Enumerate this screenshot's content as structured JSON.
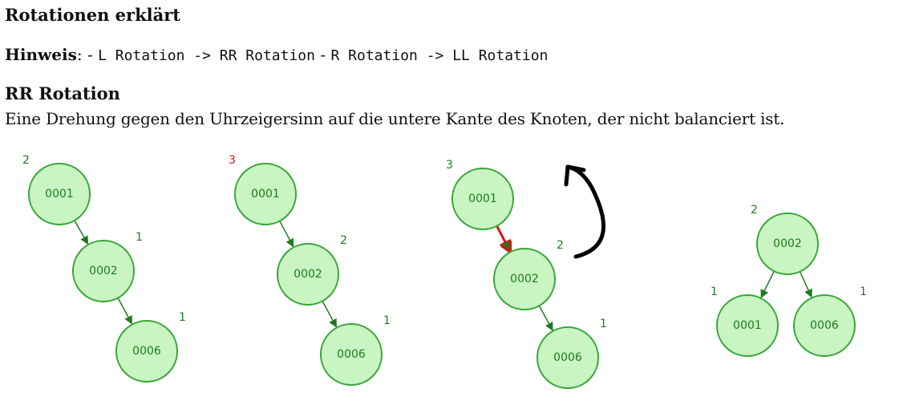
{
  "title": "Rotationen erklärt",
  "hint": {
    "label": "Hinweis",
    "sep": ": - ",
    "code1": "L Rotation -> RR Rotation",
    "mid": " - ",
    "code2": "R Rotation -> LL Rotation"
  },
  "section": {
    "heading": "RR Rotation",
    "description": "Eine Drehung gegen den Uhrzeigersinn auf die untere Kante des Knoten, der nicht balanciert ist."
  },
  "trees": [
    {
      "nodes": [
        {
          "id": "a",
          "label": "0001",
          "balance": "2",
          "highlight": false
        },
        {
          "id": "b",
          "label": "0002",
          "balance": "1",
          "highlight": false
        },
        {
          "id": "c",
          "label": "0006",
          "balance": "1",
          "highlight": false
        }
      ],
      "edges": [
        {
          "from": "a",
          "to": "b",
          "highlight": false
        },
        {
          "from": "b",
          "to": "c",
          "highlight": false
        }
      ]
    },
    {
      "nodes": [
        {
          "id": "a",
          "label": "0001",
          "balance": "3",
          "highlight": true
        },
        {
          "id": "b",
          "label": "0002",
          "balance": "2",
          "highlight": false
        },
        {
          "id": "c",
          "label": "0006",
          "balance": "1",
          "highlight": false
        }
      ],
      "edges": [
        {
          "from": "a",
          "to": "b",
          "highlight": false
        },
        {
          "from": "b",
          "to": "c",
          "highlight": false
        }
      ]
    },
    {
      "nodes": [
        {
          "id": "a",
          "label": "0001",
          "balance": "3",
          "highlight": false
        },
        {
          "id": "b",
          "label": "0002",
          "balance": "2",
          "highlight": false
        },
        {
          "id": "c",
          "label": "0006",
          "balance": "1",
          "highlight": false
        }
      ],
      "edges": [
        {
          "from": "a",
          "to": "b",
          "highlight": true
        },
        {
          "from": "b",
          "to": "c",
          "highlight": false
        }
      ],
      "rotation_arrow": "counterclockwise"
    },
    {
      "nodes": [
        {
          "id": "b",
          "label": "0002",
          "balance": "2",
          "highlight": false
        },
        {
          "id": "a",
          "label": "0001",
          "balance": "1",
          "highlight": false
        },
        {
          "id": "c",
          "label": "0006",
          "balance": "1",
          "highlight": false
        }
      ],
      "edges": [
        {
          "from": "b",
          "to": "a",
          "highlight": false
        },
        {
          "from": "b",
          "to": "c",
          "highlight": false
        }
      ]
    }
  ],
  "colors": {
    "node_fill": "#c8f5c2",
    "node_stroke": "#3aa63a",
    "text": "#1f7a1f",
    "highlight": "#e01010",
    "arrow": "#000000"
  }
}
